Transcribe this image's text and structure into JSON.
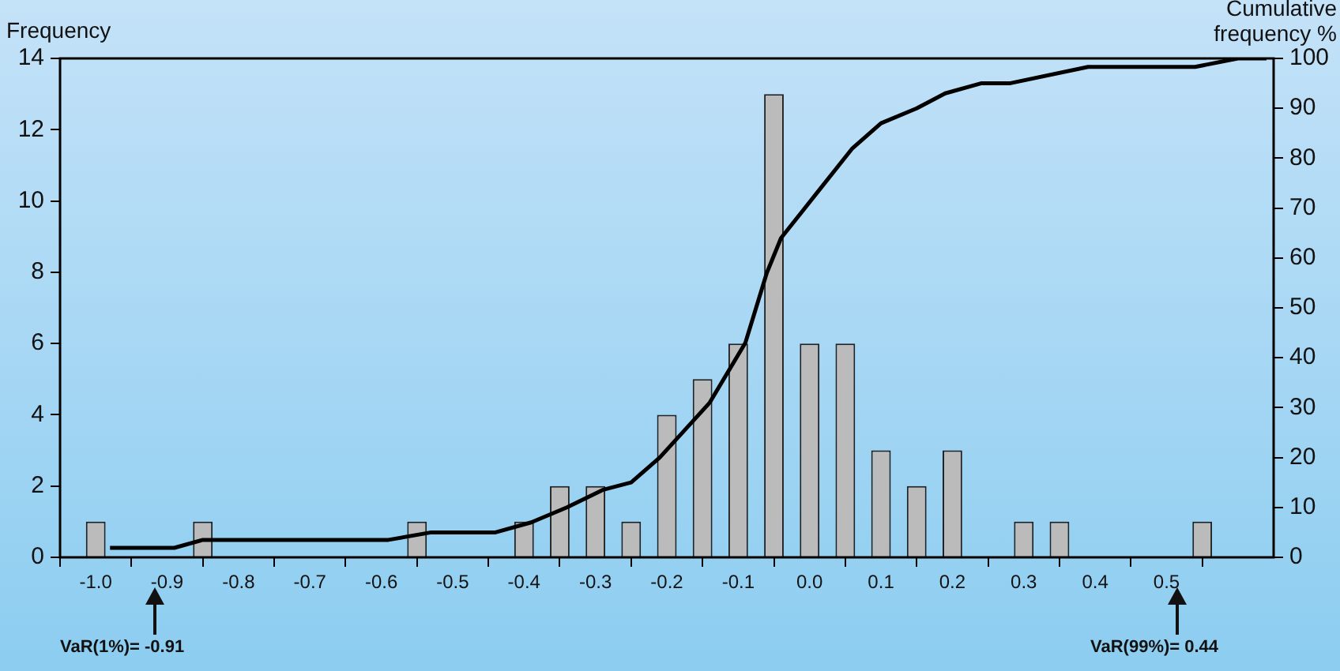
{
  "chart_data": {
    "type": "histogram",
    "ylabel": "Frequency",
    "y2label": "Cumulative frequency %",
    "bins": [
      -1.025,
      -0.975,
      -0.925,
      -0.875,
      -0.825,
      -0.775,
      -0.725,
      -0.675,
      -0.625,
      -0.575,
      -0.525,
      -0.475,
      -0.425,
      -0.375,
      -0.325,
      -0.275,
      -0.225,
      -0.175,
      -0.125,
      -0.075,
      -0.025,
      0.025,
      0.075,
      0.125,
      0.175,
      0.225,
      0.275,
      0.325,
      0.375,
      0.425,
      0.475,
      0.525,
      0.575
    ],
    "values": [
      1,
      0,
      0,
      1,
      0,
      0,
      0,
      0,
      0,
      1,
      0,
      0,
      1,
      2,
      2,
      1,
      4,
      5,
      6,
      13,
      6,
      6,
      3,
      2,
      3,
      0,
      1,
      1,
      0,
      0,
      0,
      1
    ],
    "color": "#bbbbbb",
    "series": [
      {
        "type": "line",
        "axis": "y2",
        "color": "#000000",
        "x": [
          -0.98,
          -0.89,
          -0.85,
          -0.59,
          -0.53,
          -0.44,
          -0.39,
          -0.34,
          -0.29,
          -0.25,
          -0.21,
          -0.14,
          -0.09,
          -0.06,
          -0.04,
          0.01,
          0.06,
          0.1,
          0.15,
          0.19,
          0.24,
          0.28,
          0.39,
          0.54,
          0.6,
          0.64
        ],
        "values": [
          1.9,
          1.9,
          3.5,
          3.5,
          5,
          5,
          7,
          10,
          13.5,
          15,
          20,
          31,
          43,
          57,
          64,
          73,
          82,
          87,
          90,
          93,
          95,
          95,
          98.3,
          98.3,
          100,
          100
        ]
      }
    ],
    "xlim": [
      -1.05,
      0.65
    ],
    "xticks": [
      {
        "value": -1,
        "label": "-1.0"
      },
      -0.9,
      -0.8,
      -0.7,
      -0.6,
      -0.5,
      -0.4,
      -0.3,
      -0.2,
      -0.1,
      {
        "value": 0,
        "label": "0.0"
      },
      0.1,
      0.2,
      0.3,
      0.4,
      0.5
    ],
    "ylim": [
      0,
      14
    ],
    "yticks": [
      0,
      2,
      4,
      6,
      8,
      10,
      12,
      14
    ],
    "y2lim": [
      0,
      100
    ],
    "y2ticks": [
      0,
      10,
      20,
      30,
      40,
      50,
      60,
      70,
      80,
      90,
      100
    ],
    "grid": false,
    "legend": false,
    "marker": "none",
    "line_style": "solid",
    "annotations": [
      "VaR(1%)= -0.91",
      "VaR(99%)= 0.44"
    ]
  }
}
